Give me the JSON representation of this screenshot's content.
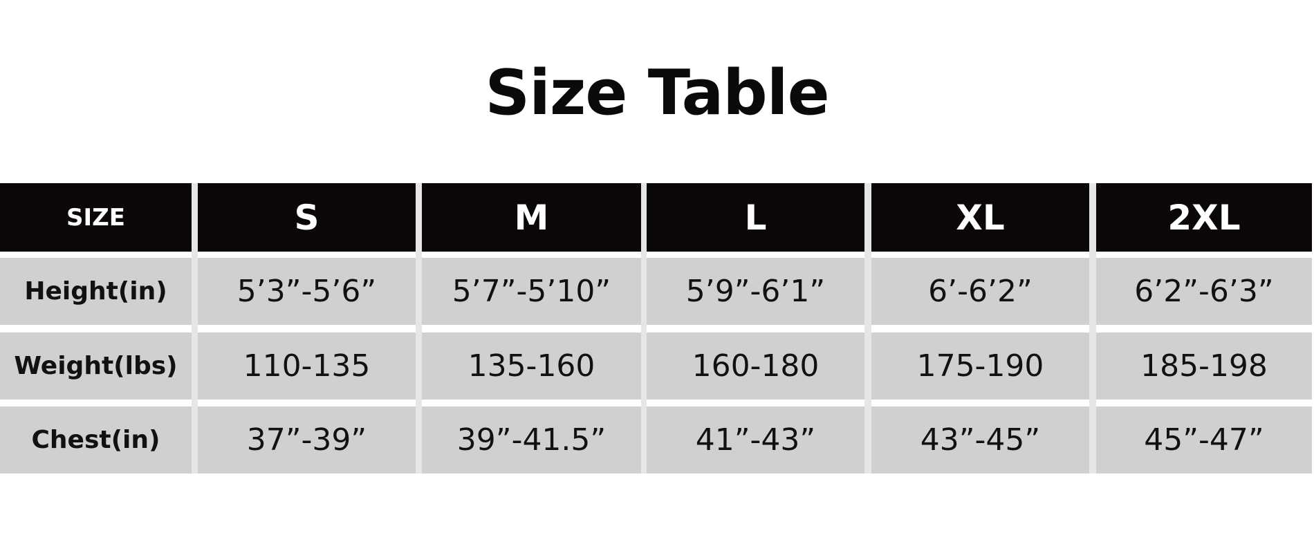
{
  "title": "Size Table",
  "table": {
    "header": [
      "SIZE",
      "S",
      "M",
      "L",
      "XL",
      "2XL"
    ],
    "rows": [
      {
        "label": "Height(in)",
        "values": [
          "5’3”-5’6”",
          "5’7”-5’10”",
          "5’9”-6’1”",
          "6’-6’2”",
          "6’2”-6’3”"
        ]
      },
      {
        "label": "Weight(lbs)",
        "values": [
          "110-135",
          "135-160",
          "160-180",
          "175-190",
          "185-198"
        ]
      },
      {
        "label": "Chest(in)",
        "values": [
          "37”-39”",
          "39”-41.5”",
          "41”-43”",
          "43”-45”",
          "45”-47”"
        ]
      }
    ]
  },
  "colors": {
    "header_bg": "#0b0707",
    "cell_bg": "#d0d0d0",
    "separator": "#e6e6e6"
  }
}
